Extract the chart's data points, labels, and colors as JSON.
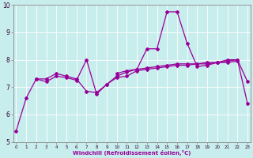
{
  "title": "",
  "xlabel": "Windchill (Refroidissement éolien,°C)",
  "background_color": "#c8eded",
  "plot_bg_color": "#c8eded",
  "grid_color": "#ffffff",
  "line_color": "#990099",
  "x": [
    0,
    1,
    2,
    3,
    4,
    5,
    6,
    7,
    8,
    9,
    10,
    11,
    12,
    13,
    14,
    15,
    16,
    17,
    18,
    19,
    20,
    21,
    22,
    23
  ],
  "line1": [
    5.4,
    6.6,
    7.3,
    7.3,
    7.5,
    7.4,
    7.3,
    6.85,
    6.8,
    7.1,
    7.35,
    7.4,
    7.6,
    7.65,
    7.7,
    7.75,
    7.8,
    7.8,
    7.85,
    7.9,
    7.9,
    7.95,
    8.0,
    6.4
  ],
  "line2": [
    null,
    null,
    7.3,
    7.2,
    7.4,
    7.35,
    7.25,
    8.0,
    6.75,
    7.1,
    7.4,
    7.55,
    7.65,
    8.4,
    8.4,
    9.75,
    9.75,
    8.6,
    7.75,
    7.8,
    7.9,
    8.0,
    8.0,
    7.2
  ],
  "line3": [
    null,
    null,
    null,
    null,
    null,
    null,
    null,
    null,
    null,
    null,
    7.5,
    7.6,
    7.65,
    7.7,
    7.75,
    7.8,
    7.85,
    7.85,
    7.85,
    7.85,
    7.9,
    7.9,
    7.95,
    null
  ],
  "ylim": [
    5,
    10
  ],
  "xlim": [
    -0.5,
    23.5
  ],
  "yticks": [
    5,
    6,
    7,
    8,
    9,
    10
  ],
  "xticks": [
    0,
    1,
    2,
    3,
    4,
    5,
    6,
    7,
    8,
    9,
    10,
    11,
    12,
    13,
    14,
    15,
    16,
    17,
    18,
    19,
    20,
    21,
    22,
    23
  ]
}
